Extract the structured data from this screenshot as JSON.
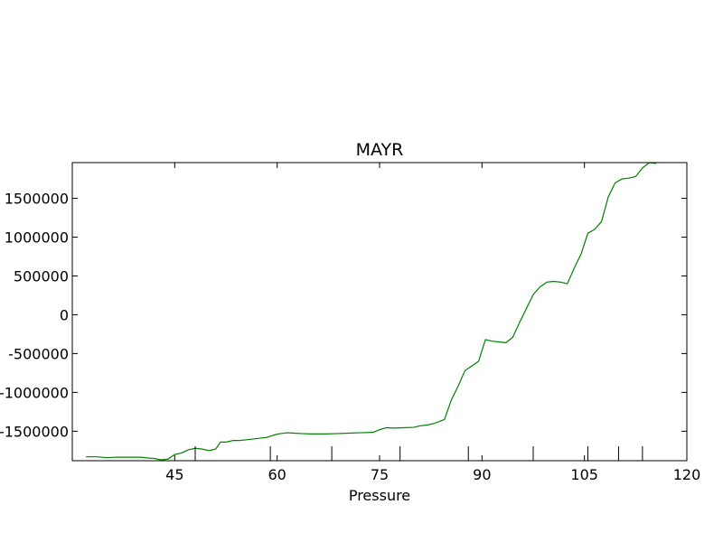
{
  "chart_data": {
    "type": "line",
    "title": "MAYR",
    "xlabel": "Pressure",
    "ylabel": "",
    "xlim": [
      30,
      120
    ],
    "ylim": [
      -1880000,
      1960000
    ],
    "grid": false,
    "line_color": "#008000",
    "x_ticks": [
      45,
      60,
      75,
      90,
      105,
      120
    ],
    "x_tick_labels": [
      "45",
      "60",
      "75",
      "90",
      "105",
      "120"
    ],
    "y_ticks": [
      -1500000,
      -1000000,
      -500000,
      0,
      500000,
      1000000,
      1500000
    ],
    "y_tick_labels": [
      "-1500000",
      "-1000000",
      "-500000",
      "0",
      "500000",
      "1000000",
      "1500000"
    ],
    "event_markers_x": [
      48,
      59,
      68,
      78,
      88,
      97.5,
      105.5,
      110,
      113.5
    ],
    "series": [
      {
        "name": "MAYR",
        "x": [
          32,
          33.5,
          35,
          36.5,
          38,
          40,
          41,
          42,
          43,
          44,
          45,
          46,
          47,
          48,
          49,
          50,
          51,
          51.7,
          52.5,
          53.5,
          54.5,
          55.5,
          56.5,
          57.5,
          58.5,
          59.5,
          60.5,
          61.5,
          62.5,
          63.5,
          65,
          67,
          69,
          70.5,
          72,
          74,
          75,
          76,
          77,
          78.5,
          80,
          81,
          82,
          83,
          84.5,
          85.5,
          86.5,
          87.5,
          88.5,
          89.5,
          90.5,
          91.5,
          92.5,
          93.5,
          94.5,
          95.5,
          96.5,
          97.5,
          98.5,
          99.5,
          100.5,
          101.5,
          102.5,
          103.5,
          104.5,
          105.5,
          106.5,
          107.5,
          108.5,
          109.5,
          110.5,
          111.5,
          112.5,
          113.5,
          114.5,
          115.5
        ],
        "y": [
          -1830000,
          -1830000,
          -1840000,
          -1835000,
          -1835000,
          -1835000,
          -1845000,
          -1850000,
          -1870000,
          -1860000,
          -1800000,
          -1780000,
          -1740000,
          -1720000,
          -1730000,
          -1750000,
          -1730000,
          -1640000,
          -1640000,
          -1620000,
          -1620000,
          -1610000,
          -1600000,
          -1590000,
          -1580000,
          -1550000,
          -1530000,
          -1520000,
          -1525000,
          -1530000,
          -1535000,
          -1535000,
          -1530000,
          -1525000,
          -1520000,
          -1515000,
          -1480000,
          -1455000,
          -1460000,
          -1455000,
          -1450000,
          -1430000,
          -1420000,
          -1400000,
          -1350000,
          -1100000,
          -920000,
          -720000,
          -660000,
          -600000,
          -320000,
          -340000,
          -350000,
          -360000,
          -290000,
          -100000,
          80000,
          260000,
          360000,
          420000,
          430000,
          420000,
          400000,
          600000,
          780000,
          1050000,
          1100000,
          1200000,
          1520000,
          1700000,
          1750000,
          1760000,
          1780000,
          1890000,
          1960000,
          1950000
        ]
      }
    ]
  }
}
